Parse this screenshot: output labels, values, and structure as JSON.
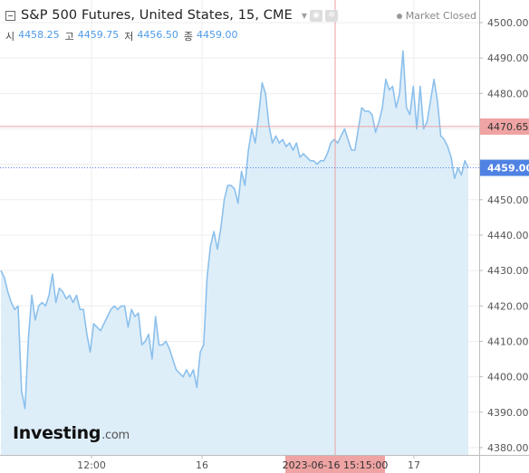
{
  "header": {
    "title": "S&P 500 Futures, United States, 15, CME",
    "market_status": "Market Closed"
  },
  "ohlc": [
    {
      "key": "시",
      "value": "4458.25"
    },
    {
      "key": "고",
      "value": "4459.75"
    },
    {
      "key": "저",
      "value": "4456.50"
    },
    {
      "key": "종",
      "value": "4459.00"
    }
  ],
  "logo": {
    "main": "Investing",
    "suffix": ".com"
  },
  "colors": {
    "line": "#8cc0ec",
    "fill": "#deeef9",
    "last_price_bg": "#4f82e3",
    "crosshair_price_bg": "#efa3a3",
    "crosshair_line": "#e9a2a2",
    "grid": "#eeeeee"
  },
  "icons": {
    "collapse": "minus-box-icon",
    "caret": "caret-down-icon",
    "settings": "gear-icon",
    "eye": "eye-icon",
    "status_dot": "status-dot-icon"
  },
  "chart_data": {
    "type": "area",
    "title": "S&P 500 Futures, United States, 15, CME",
    "y_axis": {
      "side": "right",
      "ylim": [
        4377,
        4503
      ],
      "ticks": [
        "4380.00",
        "4390.00",
        "4400.00",
        "4410.00",
        "4420.00",
        "4430.00",
        "4440.00",
        "4450.00",
        "4460.00",
        "4470.00",
        "4480.00",
        "4490.00",
        "4500.00"
      ]
    },
    "x_axis": {
      "ticks": [
        "12:00",
        "16",
        "17"
      ],
      "crosshair_label": "2023-06-16 15:15:00"
    },
    "last_price": "4459.00",
    "crosshair_price": "4470.65",
    "grid": true,
    "series": [
      {
        "values": [
          4430,
          4428,
          4424,
          4421,
          4419,
          4420,
          4396,
          4391,
          4411,
          4423,
          4416,
          4420,
          4421,
          4420,
          4423,
          4429,
          4421,
          4425,
          4424,
          4422,
          4423,
          4421,
          4423,
          4419,
          4419,
          4412,
          4407,
          4415,
          4414,
          4413,
          4415,
          4417,
          4419,
          4420,
          4419,
          4420,
          4420,
          4414,
          4419,
          4417,
          4418,
          4409,
          4410,
          4412,
          4405,
          4417,
          4409,
          4409,
          4410,
          4408,
          4405,
          4402,
          4401,
          4400,
          4402,
          4400,
          4402,
          4397,
          4407,
          4409,
          4428,
          4437,
          4441,
          4436,
          4442,
          4450,
          4454,
          4454,
          4453,
          4449,
          4458,
          4454,
          4464,
          4470,
          4466,
          4474,
          4483,
          4480,
          4471,
          4466,
          4468,
          4466,
          4467,
          4465,
          4466,
          4464,
          4466,
          4462,
          4463,
          4462,
          4461,
          4461,
          4460,
          4461,
          4461,
          4463,
          4466,
          4467,
          4466,
          4468,
          4470,
          4467,
          4464,
          4464,
          4470,
          4476,
          4475,
          4475,
          4474,
          4469,
          4472,
          4476,
          4484,
          4481,
          4482,
          4476,
          4480,
          4492,
          4476,
          4474,
          4482,
          4470,
          4482,
          4470,
          4472,
          4478,
          4484,
          4478,
          4468,
          4467,
          4465,
          4462,
          4456,
          4459,
          4457,
          4461,
          4459
        ]
      }
    ]
  }
}
